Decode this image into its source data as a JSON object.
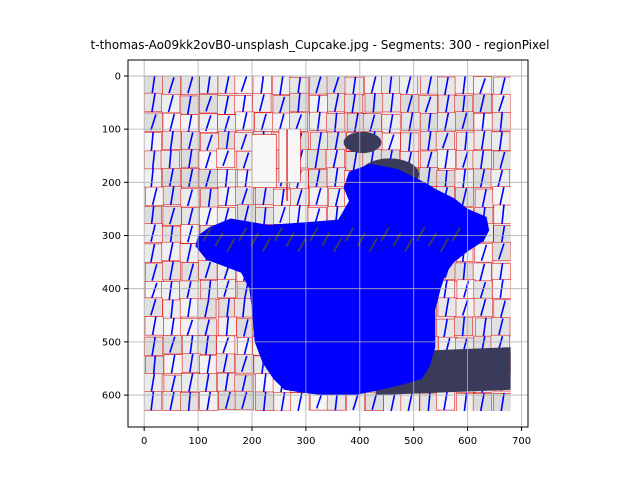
{
  "chart_data": {
    "type": "image-plot",
    "title": "t-thomas-Ao09kk2ovB0-unsplash_Cupcake.jpg - Segments: 300 - regionPixel",
    "xlim": [
      -30,
      712
    ],
    "ylim": [
      660,
      -30
    ],
    "image_extent": {
      "x": [
        0,
        680
      ],
      "y": [
        630,
        0
      ]
    },
    "xticks": [
      0,
      100,
      200,
      300,
      400,
      500,
      600,
      700
    ],
    "yticks": [
      0,
      100,
      200,
      300,
      400,
      500,
      600
    ],
    "grid": true,
    "segments": 300,
    "colors": {
      "segment_boundary": "#e00000",
      "vector_lines": "#0000ff",
      "background_regions": "#e6e6e6",
      "dark_regions": "#3a3a5a",
      "grid": "#b0b0b0"
    }
  }
}
